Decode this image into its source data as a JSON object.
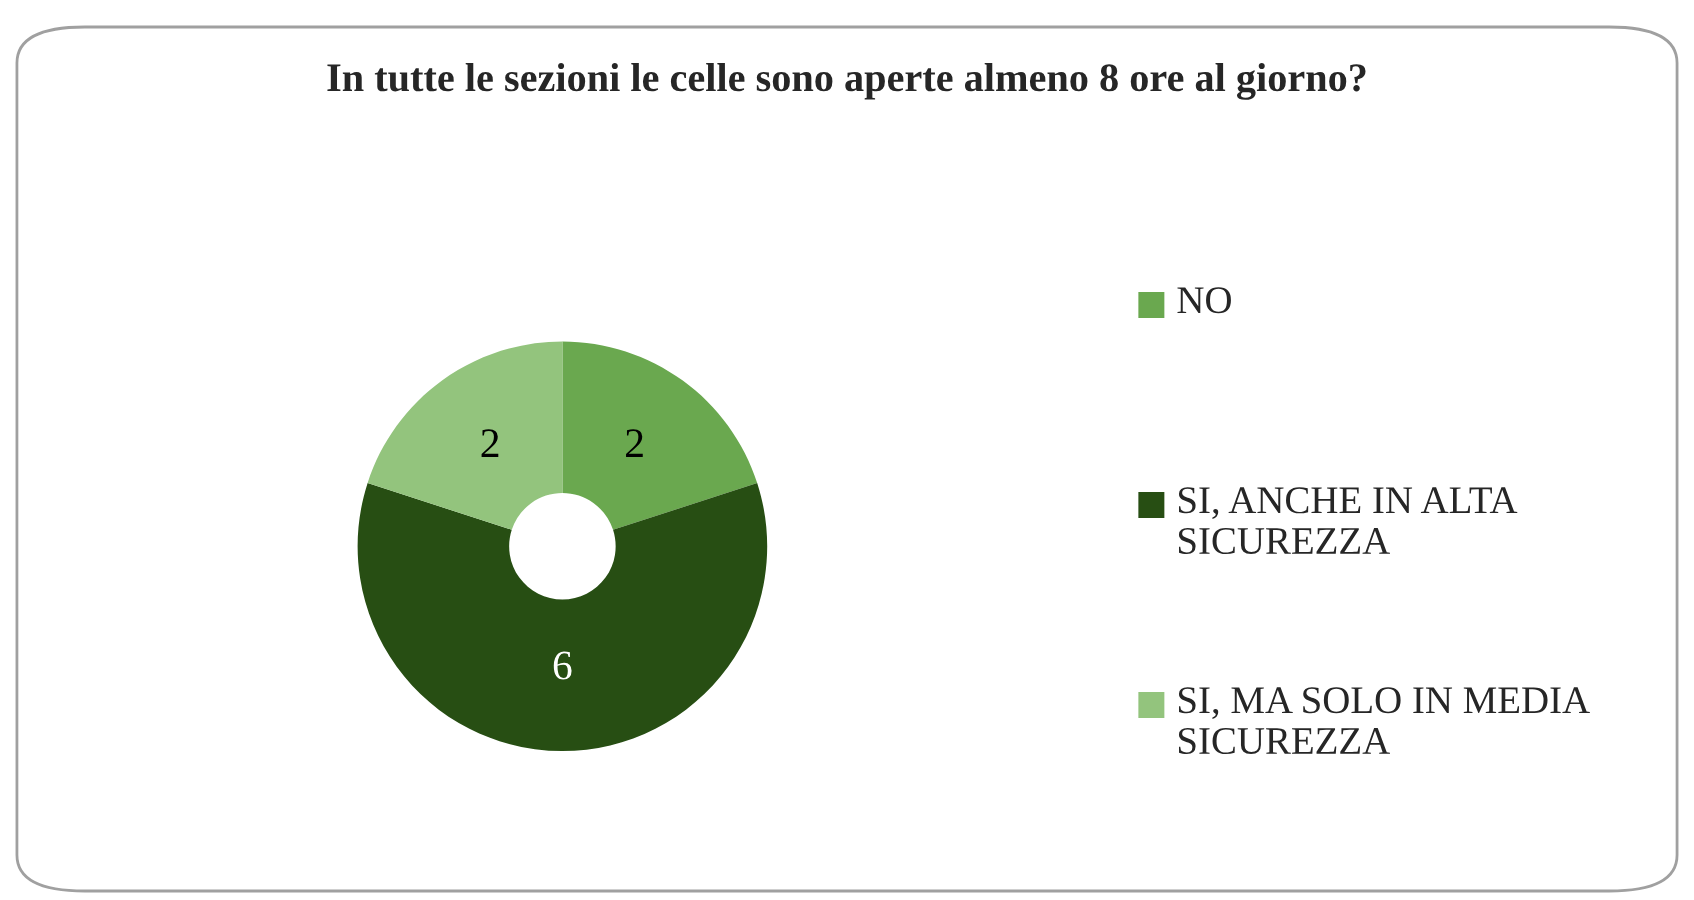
{
  "chart_data": {
    "type": "donut",
    "title": "In tutte le sezioni le celle sono aperte almeno 8 ore al giorno?",
    "categories": [
      "NO",
      "SI, ANCHE IN ALTA SICUREZZA",
      "SI, MA SOLO IN MEDIA SICUREZZA"
    ],
    "values": [
      2,
      6,
      2
    ],
    "colors": [
      "#6aa84f",
      "#274e13",
      "#93c47d"
    ],
    "data_labels": true,
    "legend": "right"
  }
}
